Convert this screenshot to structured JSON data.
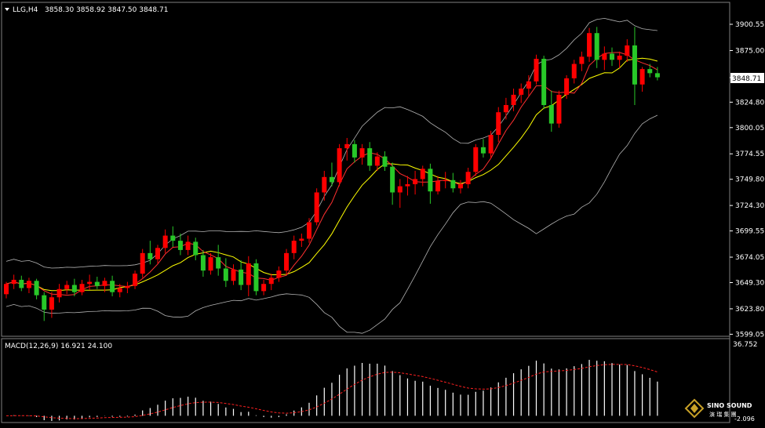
{
  "header": {
    "symbol_label": "LLG,H4",
    "ohlc_label": "3858.30 3858.92 3847.50 3848.71"
  },
  "price_axis": {
    "ticks": [
      {
        "label": "3900.55",
        "value": 3900.55
      },
      {
        "label": "3875.00",
        "value": 3875.0
      },
      {
        "label": "3824.80",
        "value": 3824.8
      },
      {
        "label": "3800.05",
        "value": 3800.05
      },
      {
        "label": "3774.55",
        "value": 3774.55
      },
      {
        "label": "3749.80",
        "value": 3749.8
      },
      {
        "label": "3724.30",
        "value": 3724.3
      },
      {
        "label": "3699.55",
        "value": 3699.55
      },
      {
        "label": "3674.05",
        "value": 3674.05
      },
      {
        "label": "3649.30",
        "value": 3649.3
      },
      {
        "label": "3623.80",
        "value": 3623.8
      },
      {
        "label": "3599.05",
        "value": 3599.05
      }
    ],
    "current_price_label": "3848.71",
    "current_price": 3848.71
  },
  "macd_panel": {
    "label": "MACD(12,26,9) 16.921 24.100",
    "max_label": "36.752",
    "bottom_label": "-2.096"
  },
  "watermark": {
    "brand": "SINO SOUND",
    "chinese": "演 瑞 集 團"
  },
  "colors": {
    "background": "#000000",
    "bull_candle": "#ff0000",
    "bear_candle": "#28c828",
    "bollinger": "#b4b4b4",
    "ma_fast": "#ffff00",
    "ma_slow": "#ff3030",
    "macd_histogram": "#ffffff",
    "macd_signal": "#ff2020"
  },
  "chart_data": {
    "type": "candlestick",
    "timeframe": "H4",
    "candles": [
      [
        3638,
        3650,
        3634,
        3648
      ],
      [
        3648,
        3657,
        3643,
        3652
      ],
      [
        3652,
        3656,
        3641,
        3644
      ],
      [
        3644,
        3654,
        3639,
        3651
      ],
      [
        3651,
        3653,
        3633,
        3637
      ],
      [
        3637,
        3640,
        3612,
        3623
      ],
      [
        3623,
        3640,
        3615,
        3635
      ],
      [
        3635,
        3648,
        3630,
        3643
      ],
      [
        3643,
        3651,
        3638,
        3647
      ],
      [
        3647,
        3653,
        3636,
        3640
      ],
      [
        3640,
        3652,
        3637,
        3648
      ],
      [
        3648,
        3657,
        3642,
        3650
      ],
      [
        3650,
        3655,
        3643,
        3646
      ],
      [
        3646,
        3654,
        3640,
        3651
      ],
      [
        3651,
        3656,
        3636,
        3640
      ],
      [
        3640,
        3648,
        3635,
        3644
      ],
      [
        3644,
        3650,
        3639,
        3646
      ],
      [
        3646,
        3661,
        3643,
        3658
      ],
      [
        3658,
        3682,
        3654,
        3678
      ],
      [
        3678,
        3690,
        3667,
        3672
      ],
      [
        3672,
        3686,
        3668,
        3683
      ],
      [
        3683,
        3701,
        3678,
        3695
      ],
      [
        3695,
        3704,
        3684,
        3690
      ],
      [
        3690,
        3697,
        3676,
        3681
      ],
      [
        3681,
        3695,
        3676,
        3689
      ],
      [
        3689,
        3693,
        3671,
        3676
      ],
      [
        3676,
        3681,
        3655,
        3661
      ],
      [
        3661,
        3678,
        3657,
        3674
      ],
      [
        3674,
        3686,
        3656,
        3663
      ],
      [
        3663,
        3673,
        3645,
        3651
      ],
      [
        3651,
        3667,
        3647,
        3662
      ],
      [
        3662,
        3671,
        3642,
        3647
      ],
      [
        3647,
        3675,
        3636,
        3668
      ],
      [
        3668,
        3672,
        3637,
        3641
      ],
      [
        3641,
        3652,
        3637,
        3648
      ],
      [
        3648,
        3658,
        3642,
        3654
      ],
      [
        3654,
        3665,
        3650,
        3661
      ],
      [
        3661,
        3682,
        3657,
        3678
      ],
      [
        3678,
        3695,
        3672,
        3690
      ],
      [
        3690,
        3697,
        3684,
        3692
      ],
      [
        3692,
        3712,
        3688,
        3708
      ],
      [
        3708,
        3741,
        3705,
        3737
      ],
      [
        3737,
        3758,
        3729,
        3752
      ],
      [
        3752,
        3766,
        3743,
        3747
      ],
      [
        3747,
        3784,
        3743,
        3780
      ],
      [
        3780,
        3790,
        3768,
        3784
      ],
      [
        3784,
        3788,
        3766,
        3771
      ],
      [
        3771,
        3784,
        3764,
        3780
      ],
      [
        3780,
        3786,
        3758,
        3763
      ],
      [
        3763,
        3776,
        3758,
        3772
      ],
      [
        3772,
        3777,
        3758,
        3762
      ],
      [
        3762,
        3766,
        3725,
        3737
      ],
      [
        3737,
        3750,
        3722,
        3743
      ],
      [
        3743,
        3753,
        3734,
        3745
      ],
      [
        3745,
        3758,
        3735,
        3750
      ],
      [
        3750,
        3763,
        3743,
        3760
      ],
      [
        3760,
        3765,
        3726,
        3738
      ],
      [
        3738,
        3753,
        3735,
        3748
      ],
      [
        3748,
        3757,
        3741,
        3749
      ],
      [
        3749,
        3756,
        3737,
        3741
      ],
      [
        3741,
        3749,
        3736,
        3745
      ],
      [
        3745,
        3761,
        3741,
        3757
      ],
      [
        3757,
        3784,
        3753,
        3781
      ],
      [
        3781,
        3789,
        3771,
        3775
      ],
      [
        3775,
        3797,
        3770,
        3793
      ],
      [
        3793,
        3820,
        3786,
        3815
      ],
      [
        3815,
        3829,
        3808,
        3822
      ],
      [
        3822,
        3838,
        3816,
        3832
      ],
      [
        3832,
        3843,
        3824,
        3838
      ],
      [
        3838,
        3851,
        3831,
        3845
      ],
      [
        3845,
        3871,
        3842,
        3867
      ],
      [
        3867,
        3870,
        3818,
        3822
      ],
      [
        3822,
        3836,
        3796,
        3804
      ],
      [
        3804,
        3836,
        3800,
        3832
      ],
      [
        3832,
        3851,
        3828,
        3848
      ],
      [
        3848,
        3866,
        3843,
        3862
      ],
      [
        3862,
        3874,
        3855,
        3869
      ],
      [
        3869,
        3897,
        3864,
        3892
      ],
      [
        3892,
        3898,
        3858,
        3866
      ],
      [
        3866,
        3879,
        3856,
        3872
      ],
      [
        3872,
        3878,
        3860,
        3866
      ],
      [
        3866,
        3874,
        3858,
        3870
      ],
      [
        3870,
        3886,
        3864,
        3880
      ],
      [
        3880,
        3898,
        3822,
        3842
      ],
      [
        3842,
        3859,
        3835,
        3857
      ],
      [
        3857,
        3862,
        3849,
        3853
      ],
      [
        3853,
        3859,
        3846,
        3849
      ]
    ],
    "indicators": {
      "bollinger_bands": {
        "color": "#b4b4b4"
      },
      "moving_average_fast": {
        "color": "#ffff00"
      },
      "moving_average_slow": {
        "color": "#ff3030"
      }
    },
    "macd": {
      "name": "MACD(12,26,9)",
      "macd": 16.921,
      "signal": 24.1,
      "range": [
        -2.096,
        36.752
      ]
    },
    "yrange": [
      3599.05,
      3908.0
    ],
    "grid": false
  }
}
